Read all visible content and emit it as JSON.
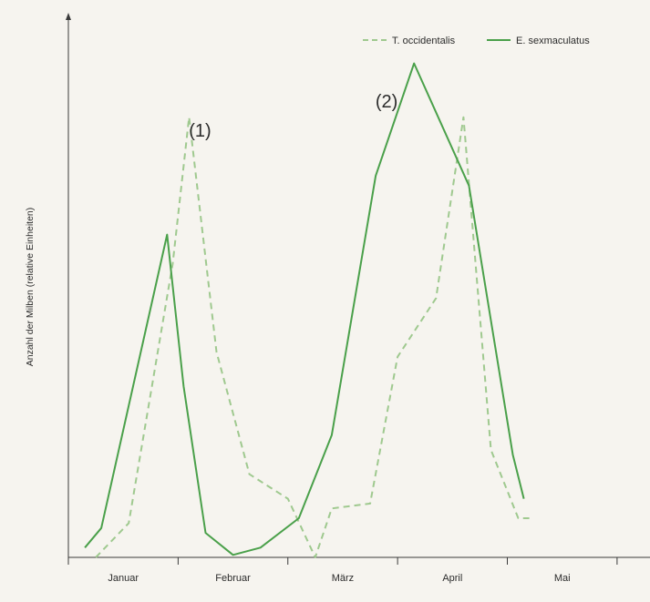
{
  "chart_data": {
    "type": "line",
    "title": "",
    "xlabel": "",
    "ylabel": "Anzahl der Milben (relative Einheiten)",
    "month_labels": [
      "Januar",
      "Februar",
      "März",
      "April",
      "Mai"
    ],
    "xlim": [
      0,
      5.3
    ],
    "ylim": [
      0,
      100
    ],
    "grid": false,
    "legend_position": "top-right",
    "colors": {
      "T. occidentalis": "#9fc98f",
      "E. sexmaculatus": "#4aa04a"
    },
    "series": [
      {
        "name": "T. occidentalis",
        "style": "dashed",
        "x": [
          0.25,
          0.55,
          0.95,
          1.1,
          1.35,
          1.65,
          2.0,
          2.25,
          2.4,
          2.75,
          3.0,
          3.35,
          3.6,
          3.85,
          4.1,
          4.2
        ],
        "y": [
          0,
          7,
          60,
          90,
          42,
          17,
          12,
          0,
          10,
          11,
          41,
          53,
          90,
          22,
          8,
          8
        ]
      },
      {
        "name": "E. sexmaculatus",
        "style": "solid",
        "x": [
          0.15,
          0.3,
          0.9,
          1.05,
          1.25,
          1.5,
          1.75,
          2.1,
          2.4,
          2.8,
          3.15,
          3.65,
          4.05,
          4.15
        ],
        "y": [
          2,
          6,
          66,
          35,
          5,
          0.5,
          2,
          8,
          25,
          78,
          101,
          76,
          21,
          12
        ]
      }
    ],
    "annotations": [
      {
        "text": "(1)",
        "x": 1.2,
        "y": 86
      },
      {
        "text": "(2)",
        "x": 2.9,
        "y": 92
      }
    ]
  }
}
